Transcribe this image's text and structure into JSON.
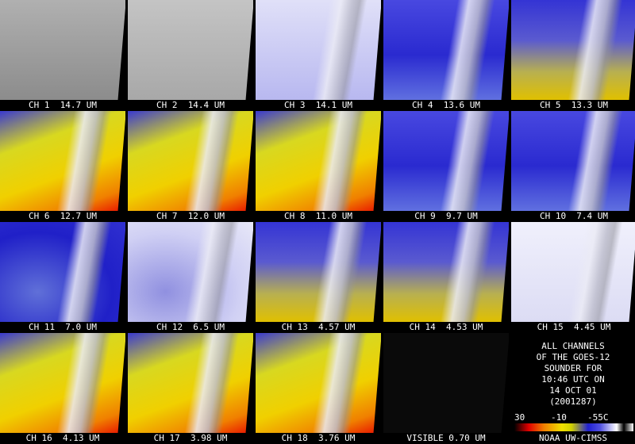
{
  "panels": [
    "CH 1  14.7 UM",
    "CH 2  14.4 UM",
    "CH 3  14.1 UM",
    "CH 4  13.6 UM",
    "CH 5  13.3 UM",
    "CH 6  12.7 UM",
    "CH 7  12.0 UM",
    "CH 8  11.0 UM",
    "CH 9  9.7 UM",
    "CH 10  7.4 UM",
    "CH 11  7.0 UM",
    "CH 12  6.5 UM",
    "CH 13  4.57 UM",
    "CH 14  4.53 UM",
    "CH 15  4.45 UM",
    "CH 16  4.13 UM",
    "CH 17  3.98 UM",
    "CH 18  3.76 UM",
    "VISIBLE 0.70 UM"
  ],
  "info": {
    "lines": [
      "ALL CHANNELS",
      "OF THE GOES-12",
      "SOUNDER FOR",
      "10:46 UTC ON",
      "14 OCT 01",
      "(2001287)"
    ]
  },
  "colorbar": {
    "labels": [
      "30",
      "-10",
      "-55C"
    ]
  },
  "credit": "NOAA UW-CIMSS"
}
